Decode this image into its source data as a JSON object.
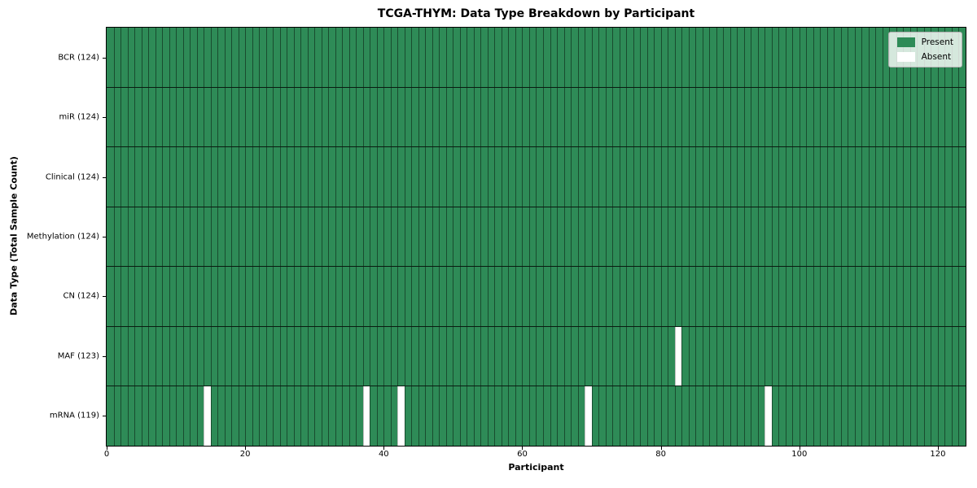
{
  "chart_data": {
    "type": "heatmap",
    "title": "TCGA-THYM: Data Type Breakdown by Participant",
    "xlabel": "Participant",
    "ylabel": "Data Type (Total Sample Count)",
    "n_participants": 124,
    "xlim": [
      0,
      124
    ],
    "x_ticks": [
      0,
      20,
      40,
      60,
      80,
      100,
      120
    ],
    "grid": "cell edges drawn, black row separators",
    "legend_position": "upper right",
    "legend": [
      {
        "label": "Present",
        "color": "#2e8b57"
      },
      {
        "label": "Absent",
        "color": "#ffffff"
      }
    ],
    "colors": {
      "present": "#2e8b57",
      "absent": "#ffffff",
      "cell_edge": "rgba(0,0,0,0.45)",
      "row_separator": "rgba(0,0,0,0.8)",
      "spine": "#000000"
    },
    "rows": [
      {
        "label": "BCR (124)",
        "data_type": "BCR",
        "present_count": 124,
        "absent_participants": []
      },
      {
        "label": "miR (124)",
        "data_type": "miR",
        "present_count": 124,
        "absent_participants": []
      },
      {
        "label": "Clinical (124)",
        "data_type": "Clinical",
        "present_count": 124,
        "absent_participants": []
      },
      {
        "label": "Methylation (124)",
        "data_type": "Methylation",
        "present_count": 124,
        "absent_participants": []
      },
      {
        "label": "CN (124)",
        "data_type": "CN",
        "present_count": 124,
        "absent_participants": []
      },
      {
        "label": "MAF (123)",
        "data_type": "MAF",
        "present_count": 123,
        "absent_participants": [
          82
        ]
      },
      {
        "label": "mRNA (119)",
        "data_type": "mRNA",
        "present_count": 119,
        "absent_participants": [
          14,
          37,
          42,
          69,
          95
        ]
      }
    ]
  }
}
